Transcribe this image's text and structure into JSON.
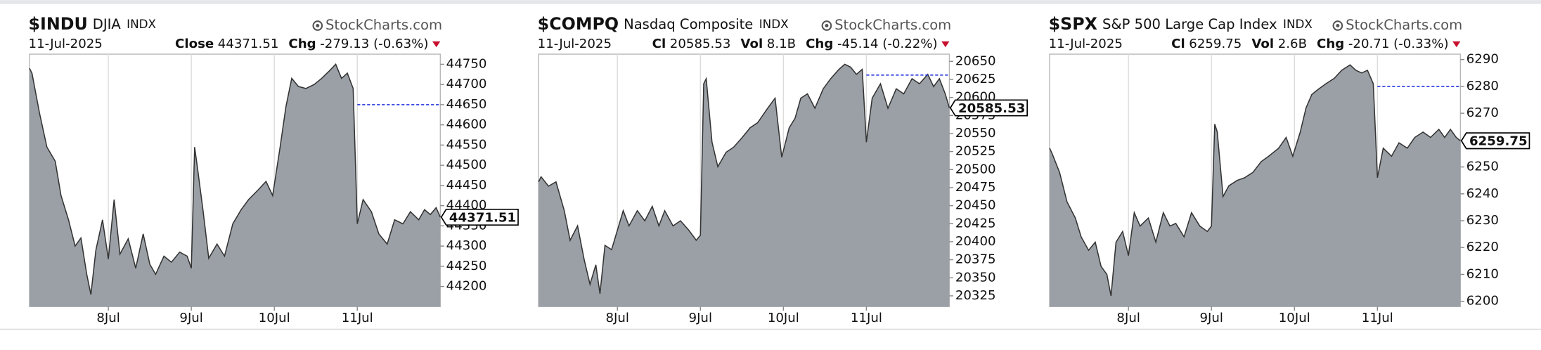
{
  "chart_data": [
    {
      "type": "area",
      "title": "$INDU",
      "name": "DJIA",
      "exchange": "INDX",
      "source": "StockCharts.com",
      "date": "11-Jul-2025",
      "stats": [
        {
          "label": "Close",
          "value": "44371.51"
        },
        {
          "label": "Chg",
          "value": "-279.13 (-0.63%)"
        }
      ],
      "color": "#9aa0a6",
      "line_color": "#333333",
      "prev_close": 44650,
      "prev_close_color": "#2233dd",
      "grid": true,
      "xlim": [
        0.05,
        5.0
      ],
      "xticks": [
        {
          "value": 1,
          "label": "8Jul"
        },
        {
          "value": 2,
          "label": "9Jul"
        },
        {
          "value": 3,
          "label": "10Jul"
        },
        {
          "value": 4,
          "label": "11Jul"
        }
      ],
      "ylim": [
        44150,
        44775
      ],
      "yticks": [
        44200,
        44250,
        44300,
        44350,
        44400,
        44450,
        44500,
        44550,
        44600,
        44650,
        44700,
        44750
      ],
      "x": [
        0.05,
        0.08,
        0.17,
        0.26,
        0.36,
        0.43,
        0.52,
        0.6,
        0.67,
        0.74,
        0.79,
        0.85,
        0.93,
        1.0,
        1.07,
        1.14,
        1.24,
        1.33,
        1.42,
        1.5,
        1.57,
        1.67,
        1.76,
        1.86,
        1.95,
        2.0,
        2.04,
        2.07,
        2.14,
        2.21,
        2.31,
        2.4,
        2.5,
        2.6,
        2.69,
        2.81,
        2.9,
        2.98,
        3.07,
        3.14,
        3.21,
        3.29,
        3.38,
        3.48,
        3.57,
        3.67,
        3.74,
        3.81,
        3.88,
        3.95,
        4.0,
        4.07,
        4.17,
        4.26,
        4.36,
        4.45,
        4.55,
        4.64,
        4.74,
        4.81,
        4.88,
        4.95,
        5.0
      ],
      "values": [
        44740,
        44728,
        44630,
        44545,
        44510,
        44425,
        44365,
        44300,
        44320,
        44230,
        44180,
        44290,
        44365,
        44268,
        44415,
        44280,
        44318,
        44245,
        44330,
        44255,
        44230,
        44275,
        44260,
        44285,
        44275,
        44245,
        44545,
        44500,
        44390,
        44270,
        44305,
        44275,
        44355,
        44390,
        44415,
        44440,
        44460,
        44425,
        44545,
        44645,
        44715,
        44695,
        44690,
        44700,
        44715,
        44735,
        44750,
        44715,
        44728,
        44690,
        44355,
        44415,
        44385,
        44330,
        44305,
        44365,
        44355,
        44385,
        44365,
        44390,
        44378,
        44395,
        44371.51
      ]
    },
    {
      "type": "area",
      "title": "$COMPQ",
      "name": "Nasdaq Composite",
      "exchange": "INDX",
      "source": "StockCharts.com",
      "date": "11-Jul-2025",
      "stats": [
        {
          "label": "Cl",
          "value": "20585.53"
        },
        {
          "label": "Vol",
          "value": "8.1B"
        },
        {
          "label": "Chg",
          "value": "-45.14 (-0.22%)"
        }
      ],
      "color": "#9aa0a6",
      "line_color": "#333333",
      "prev_close": 20631,
      "prev_close_color": "#2233dd",
      "grid": true,
      "xlim": [
        0.05,
        5.0
      ],
      "xticks": [
        {
          "value": 1,
          "label": "8Jul"
        },
        {
          "value": 2,
          "label": "9Jul"
        },
        {
          "value": 3,
          "label": "10Jul"
        },
        {
          "value": 4,
          "label": "11Jul"
        }
      ],
      "ylim": [
        20310,
        20660
      ],
      "yticks": [
        20325,
        20350,
        20375,
        20400,
        20425,
        20450,
        20475,
        20500,
        20525,
        20550,
        20575,
        20600,
        20625,
        20650
      ],
      "x": [
        0.05,
        0.08,
        0.17,
        0.26,
        0.36,
        0.43,
        0.52,
        0.6,
        0.67,
        0.74,
        0.79,
        0.85,
        0.93,
        1.0,
        1.07,
        1.14,
        1.24,
        1.33,
        1.42,
        1.5,
        1.57,
        1.67,
        1.76,
        1.86,
        1.95,
        2.0,
        2.04,
        2.07,
        2.14,
        2.21,
        2.31,
        2.4,
        2.5,
        2.6,
        2.69,
        2.81,
        2.9,
        2.98,
        3.07,
        3.14,
        3.21,
        3.29,
        3.38,
        3.48,
        3.57,
        3.67,
        3.74,
        3.81,
        3.88,
        3.95,
        4.0,
        4.07,
        4.17,
        4.26,
        4.36,
        4.45,
        4.55,
        4.64,
        4.74,
        4.81,
        4.88,
        4.95,
        5.0
      ],
      "values": [
        20483,
        20490,
        20477,
        20483,
        20443,
        20402,
        20422,
        20375,
        20341,
        20368,
        20328,
        20395,
        20389,
        20416,
        20443,
        20422,
        20443,
        20429,
        20449,
        20422,
        20443,
        20422,
        20429,
        20416,
        20402,
        20409,
        20619,
        20626,
        20538,
        20504,
        20524,
        20531,
        20544,
        20558,
        20565,
        20585,
        20599,
        20517,
        20558,
        20571,
        20599,
        20605,
        20585,
        20612,
        20626,
        20639,
        20646,
        20642,
        20632,
        20639,
        20538,
        20599,
        20619,
        20585,
        20612,
        20605,
        20626,
        20619,
        20632,
        20615,
        20626,
        20605,
        20585.53
      ]
    },
    {
      "type": "area",
      "title": "$SPX",
      "name": "S&P 500 Large Cap Index",
      "exchange": "INDX",
      "source": "StockCharts.com",
      "date": "11-Jul-2025",
      "stats": [
        {
          "label": "Cl",
          "value": "6259.75"
        },
        {
          "label": "Vol",
          "value": "2.6B"
        },
        {
          "label": "Chg",
          "value": "-20.71 (-0.33%)"
        }
      ],
      "color": "#9aa0a6",
      "line_color": "#333333",
      "prev_close": 6280,
      "prev_close_color": "#2233dd",
      "grid": true,
      "xlim": [
        0.05,
        5.0
      ],
      "xticks": [
        {
          "value": 1,
          "label": "8Jul"
        },
        {
          "value": 2,
          "label": "9Jul"
        },
        {
          "value": 3,
          "label": "10Jul"
        },
        {
          "value": 4,
          "label": "11Jul"
        }
      ],
      "ylim": [
        6198,
        6292
      ],
      "yticks": [
        6200,
        6210,
        6220,
        6230,
        6240,
        6250,
        6260,
        6270,
        6280,
        6290
      ],
      "x": [
        0.05,
        0.08,
        0.17,
        0.26,
        0.36,
        0.43,
        0.52,
        0.6,
        0.67,
        0.74,
        0.79,
        0.85,
        0.93,
        1.0,
        1.07,
        1.14,
        1.24,
        1.33,
        1.42,
        1.5,
        1.57,
        1.67,
        1.76,
        1.86,
        1.95,
        2.0,
        2.04,
        2.07,
        2.14,
        2.21,
        2.31,
        2.4,
        2.5,
        2.6,
        2.69,
        2.81,
        2.9,
        2.98,
        3.07,
        3.14,
        3.21,
        3.29,
        3.38,
        3.48,
        3.57,
        3.67,
        3.74,
        3.81,
        3.88,
        3.95,
        4.0,
        4.07,
        4.17,
        4.26,
        4.36,
        4.45,
        4.55,
        4.64,
        4.74,
        4.81,
        4.88,
        4.95,
        5.0
      ],
      "values": [
        6257,
        6255,
        6248,
        6237,
        6231,
        6224,
        6219,
        6222,
        6213,
        6210,
        6202,
        6222,
        6226,
        6217,
        6233,
        6228,
        6231,
        6222,
        6233,
        6228,
        6229,
        6224,
        6233,
        6228,
        6226,
        6228,
        6266,
        6263,
        6239,
        6243,
        6245,
        6246,
        6248,
        6252,
        6254,
        6257,
        6261,
        6254,
        6263,
        6272,
        6277,
        6279,
        6281,
        6283,
        6286,
        6288,
        6286,
        6285,
        6286,
        6281,
        6246,
        6257,
        6254,
        6259,
        6257,
        6261,
        6263,
        6261,
        6264,
        6261,
        6264,
        6261,
        6259.75
      ]
    }
  ]
}
